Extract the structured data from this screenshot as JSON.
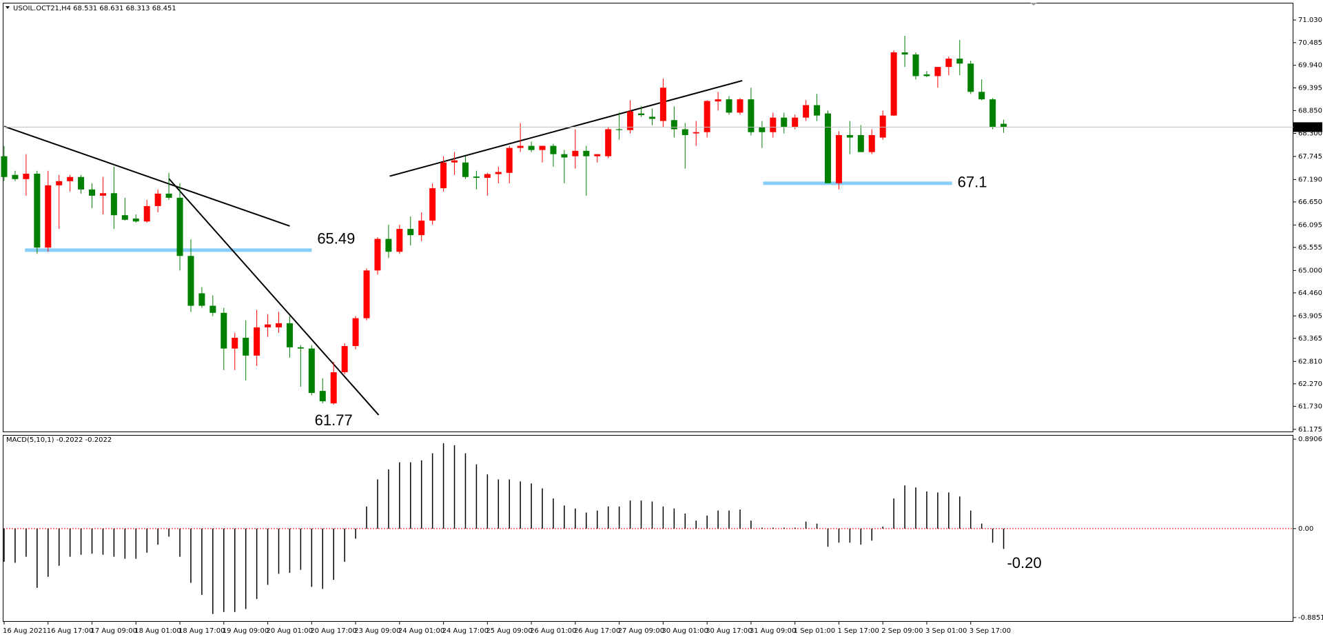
{
  "chart_data": [
    {
      "type": "candlestick",
      "title": "USOIL.OCT21,H4",
      "categories": [
        "16 Aug 2021",
        null,
        null,
        null,
        "16 Aug 17:00",
        null,
        null,
        null,
        "17 Aug 09:00",
        null,
        null,
        null,
        "18 Aug 01:00",
        null,
        null,
        null,
        "18 Aug 17:00",
        null,
        null,
        null,
        "19 Aug 09:00",
        null,
        null,
        null,
        "20 Aug 01:00",
        null,
        null,
        null,
        "20 Aug 17:00",
        null,
        null,
        null,
        "23 Aug 09:00",
        null,
        null,
        null,
        "24 Aug 01:00",
        null,
        null,
        null,
        "24 Aug 17:00",
        null,
        null,
        null,
        "25 Aug 09:00",
        null,
        null,
        null,
        "26 Aug 01:00",
        null,
        null,
        null,
        "26 Aug 17:00",
        null,
        null,
        null,
        "27 Aug 09:00",
        null,
        null,
        null,
        "30 Aug 01:00",
        null,
        null,
        null,
        "30 Aug 17:00",
        null,
        null,
        null,
        "31 Aug 09:00",
        null,
        null,
        null,
        "1 Sep 01:00",
        null,
        null,
        null,
        "1 Sep 17:00",
        null,
        null,
        null,
        "2 Sep 09:00",
        null,
        null,
        null,
        "3 Sep 01:00",
        null,
        null,
        null,
        "3 Sep 17:00",
        null,
        null,
        null
      ],
      "open": [
        67.75,
        67.3,
        67.2,
        67.33,
        65.55,
        67.05,
        67.15,
        67.25,
        66.95,
        66.8,
        66.86,
        66.33,
        66.25,
        66.18,
        66.55,
        66.85,
        66.75,
        65.35,
        64.45,
        64.15,
        63.98,
        63.12,
        63.38,
        62.95,
        63.63,
        63.63,
        63.73,
        63.15,
        63.12,
        62.1,
        61.8,
        62.55,
        63.18,
        63.85,
        65.0,
        65.76,
        65.45,
        66.0,
        65.85,
        66.2,
        66.98,
        67.6,
        67.6,
        67.26,
        67.23,
        67.32,
        67.35,
        67.95,
        68.0,
        67.9,
        68.0,
        67.8,
        67.75,
        67.88,
        67.75,
        67.75,
        68.4,
        68.38,
        68.78,
        68.7,
        68.6,
        68.62,
        68.4,
        68.3,
        68.33,
        69.07,
        69.12,
        68.8,
        69.12,
        68.45,
        68.33,
        68.68,
        68.45,
        68.68,
        68.98,
        68.78,
        67.1,
        68.26,
        68.26,
        67.85,
        68.2,
        68.73,
        70.25,
        70.2,
        69.72,
        69.68,
        69.9,
        70.1,
        69.98,
        69.3,
        69.12,
        68.531
      ],
      "high": [
        68.0,
        67.4,
        67.8,
        67.4,
        67.4,
        67.3,
        67.3,
        67.3,
        67.1,
        67.25,
        67.5,
        66.75,
        66.35,
        66.7,
        66.95,
        67.35,
        67.1,
        65.75,
        64.6,
        64.4,
        64.1,
        63.5,
        63.8,
        64.05,
        63.95,
        64.0,
        63.9,
        63.2,
        63.2,
        62.4,
        62.8,
        63.25,
        63.9,
        65.05,
        65.8,
        66.1,
        66.1,
        66.3,
        66.4,
        67.1,
        67.75,
        67.85,
        67.75,
        67.4,
        67.35,
        67.5,
        68.0,
        68.55,
        68.1,
        68.0,
        68.05,
        67.9,
        68.4,
        68.0,
        67.8,
        68.45,
        68.8,
        69.1,
        68.95,
        68.9,
        69.62,
        68.95,
        68.55,
        68.6,
        69.1,
        69.3,
        69.2,
        69.15,
        69.4,
        68.6,
        68.8,
        68.8,
        68.75,
        69.1,
        69.25,
        68.85,
        68.35,
        68.6,
        68.5,
        68.4,
        68.85,
        70.3,
        70.65,
        70.25,
        69.8,
        69.9,
        70.15,
        70.55,
        70.05,
        69.6,
        69.15,
        68.631
      ],
      "low": [
        67.15,
        67.15,
        66.8,
        65.4,
        65.45,
        66.0,
        66.9,
        66.85,
        66.5,
        66.35,
        66.0,
        66.2,
        66.15,
        66.15,
        66.4,
        66.7,
        65.0,
        64.0,
        64.1,
        63.9,
        62.6,
        62.6,
        62.35,
        62.7,
        63.4,
        63.5,
        62.9,
        62.2,
        62.0,
        61.8,
        61.77,
        62.5,
        63.1,
        63.8,
        64.9,
        65.3,
        65.4,
        65.6,
        65.7,
        66.1,
        66.9,
        67.3,
        67.2,
        66.95,
        66.8,
        67.1,
        67.1,
        67.85,
        67.85,
        67.6,
        67.5,
        67.1,
        67.45,
        66.8,
        67.6,
        67.7,
        68.15,
        68.3,
        68.7,
        68.5,
        68.45,
        68.2,
        67.45,
        68.0,
        68.2,
        68.85,
        68.75,
        68.75,
        68.25,
        67.95,
        68.2,
        68.3,
        68.4,
        68.6,
        68.6,
        67.1,
        66.95,
        67.8,
        67.85,
        67.8,
        68.15,
        68.72,
        69.9,
        69.6,
        69.65,
        69.4,
        69.7,
        69.7,
        69.25,
        69.1,
        68.4,
        68.313
      ],
      "close": [
        67.25,
        67.2,
        67.33,
        65.55,
        67.05,
        67.15,
        67.25,
        66.95,
        66.8,
        66.86,
        66.33,
        66.22,
        66.18,
        66.55,
        66.85,
        66.75,
        65.35,
        64.15,
        64.15,
        63.98,
        63.12,
        63.38,
        62.95,
        63.63,
        63.7,
        63.73,
        63.15,
        63.12,
        62.05,
        61.85,
        62.55,
        63.18,
        63.85,
        65.0,
        65.76,
        65.45,
        66.0,
        65.85,
        66.2,
        66.98,
        67.6,
        67.65,
        67.25,
        67.23,
        67.32,
        67.37,
        67.95,
        68.0,
        67.9,
        68.0,
        67.8,
        67.72,
        67.88,
        67.75,
        67.8,
        68.4,
        68.38,
        68.83,
        68.74,
        68.65,
        69.4,
        68.4,
        68.26,
        68.33,
        69.08,
        69.12,
        68.8,
        69.12,
        68.33,
        68.33,
        68.68,
        68.45,
        68.68,
        68.98,
        68.73,
        67.1,
        68.26,
        68.2,
        67.85,
        68.26,
        68.73,
        70.25,
        70.2,
        69.68,
        69.68,
        69.9,
        70.1,
        69.98,
        69.3,
        69.12,
        68.45,
        68.451
      ],
      "up_color": "#ff0000",
      "down_color": "#008000",
      "ylim": [
        61.114,
        71.437
      ],
      "yticks": [
        {
          "value": 71.03,
          "label": "71.030"
        },
        70.485,
        {
          "value": 69.94,
          "label": "69.940"
        },
        69.395,
        {
          "value": 68.85,
          "label": "68.850"
        },
        {
          "value": 68.3,
          "label": "68.300"
        },
        67.745,
        {
          "value": 67.19,
          "label": "67.190"
        },
        {
          "value": 66.65,
          "label": "66.650"
        },
        66.095,
        65.555,
        {
          "value": 65,
          "label": "65.000"
        },
        {
          "value": 64.46,
          "label": "64.460"
        },
        63.905,
        63.365,
        {
          "value": 62.81,
          "label": "62.810"
        },
        {
          "value": 62.27,
          "label": "62.270"
        },
        {
          "value": 61.73,
          "label": "61.730"
        },
        61.175
      ],
      "levels": [
        {
          "value": 65.49,
          "from": 1.9,
          "to": 28,
          "color": "#87cefa"
        },
        {
          "value": 67.1,
          "from": 69.1,
          "to": 86.3,
          "color": "#87cefa"
        }
      ],
      "annotations": [
        {
          "value": 61.77,
          "at": 30
        }
      ],
      "annotation_color": "#ff0000",
      "trend_lines": [
        {
          "from": [
            0,
            68.47
          ],
          "to": [
            26,
            66.07
          ]
        },
        {
          "from": [
            15,
            67.21
          ],
          "to": [
            34.1,
            61.52
          ]
        },
        {
          "from": [
            35.1,
            67.27
          ],
          "to": [
            67.2,
            69.57
          ]
        }
      ]
    },
    {
      "type": "histogram",
      "title": "MACD(5,10,1)",
      "values": [
        -0.33,
        -0.34,
        -0.28,
        -0.59,
        -0.48,
        -0.37,
        -0.28,
        -0.26,
        -0.25,
        -0.26,
        -0.28,
        -0.3,
        -0.3,
        -0.24,
        -0.16,
        -0.08,
        -0.28,
        -0.54,
        -0.66,
        -0.85,
        -0.83,
        -0.83,
        -0.8,
        -0.7,
        -0.56,
        -0.45,
        -0.44,
        -0.41,
        -0.58,
        -0.6,
        -0.51,
        -0.33,
        -0.1,
        0.22,
        0.49,
        0.59,
        0.66,
        0.66,
        0.68,
        0.75,
        0.85,
        0.83,
        0.75,
        0.64,
        0.54,
        0.49,
        0.49,
        0.47,
        0.45,
        0.4,
        0.3,
        0.23,
        0.2,
        0.16,
        0.18,
        0.22,
        0.22,
        0.28,
        0.28,
        0.27,
        0.22,
        0.2,
        0.15,
        0.08,
        0.13,
        0.18,
        0.18,
        0.19,
        0.08,
        0.01,
        0.01,
        0.01,
        0.01,
        0.07,
        0.05,
        -0.18,
        -0.14,
        -0.14,
        -0.16,
        -0.12,
        0.02,
        0.3,
        0.43,
        0.41,
        0.37,
        0.36,
        0.36,
        0.32,
        0.18,
        0.05,
        -0.14,
        -0.2022
      ],
      "color": "#000000",
      "zero_line_color": "#ff0000",
      "ylim": [
        -0.924,
        0.929
      ],
      "yticks": [
        0.8906,
        {
          "value": 0,
          "label": "0.00"
        },
        -0.8851
      ],
      "annotations": [
        {
          "label": "-0.20",
          "at": 91
        }
      ]
    }
  ]
}
